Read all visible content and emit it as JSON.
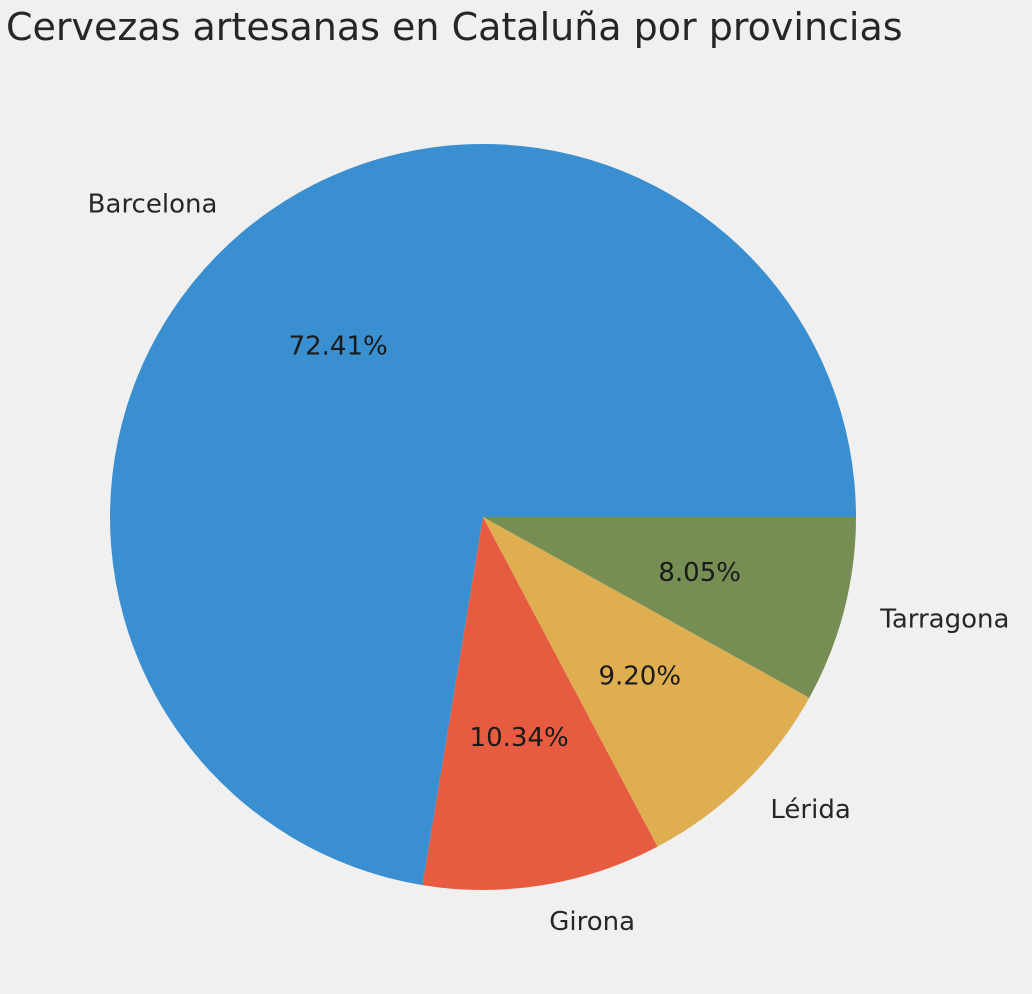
{
  "chart_data": {
    "type": "pie",
    "title": "Cervezas artesanas en Cataluña por provincias",
    "categories": [
      "Barcelona",
      "Girona",
      "Lérida",
      "Tarragona"
    ],
    "values": [
      72.41,
      10.34,
      9.2,
      8.05
    ],
    "value_labels": [
      "72.41%",
      "10.34%",
      "9.20%",
      "8.05%"
    ],
    "colors": [
      "#3a8fd0",
      "#e75c40",
      "#deae50",
      "#768e53"
    ],
    "start_angle_deg": 0,
    "direction": "counterclockwise",
    "legend": "none"
  }
}
